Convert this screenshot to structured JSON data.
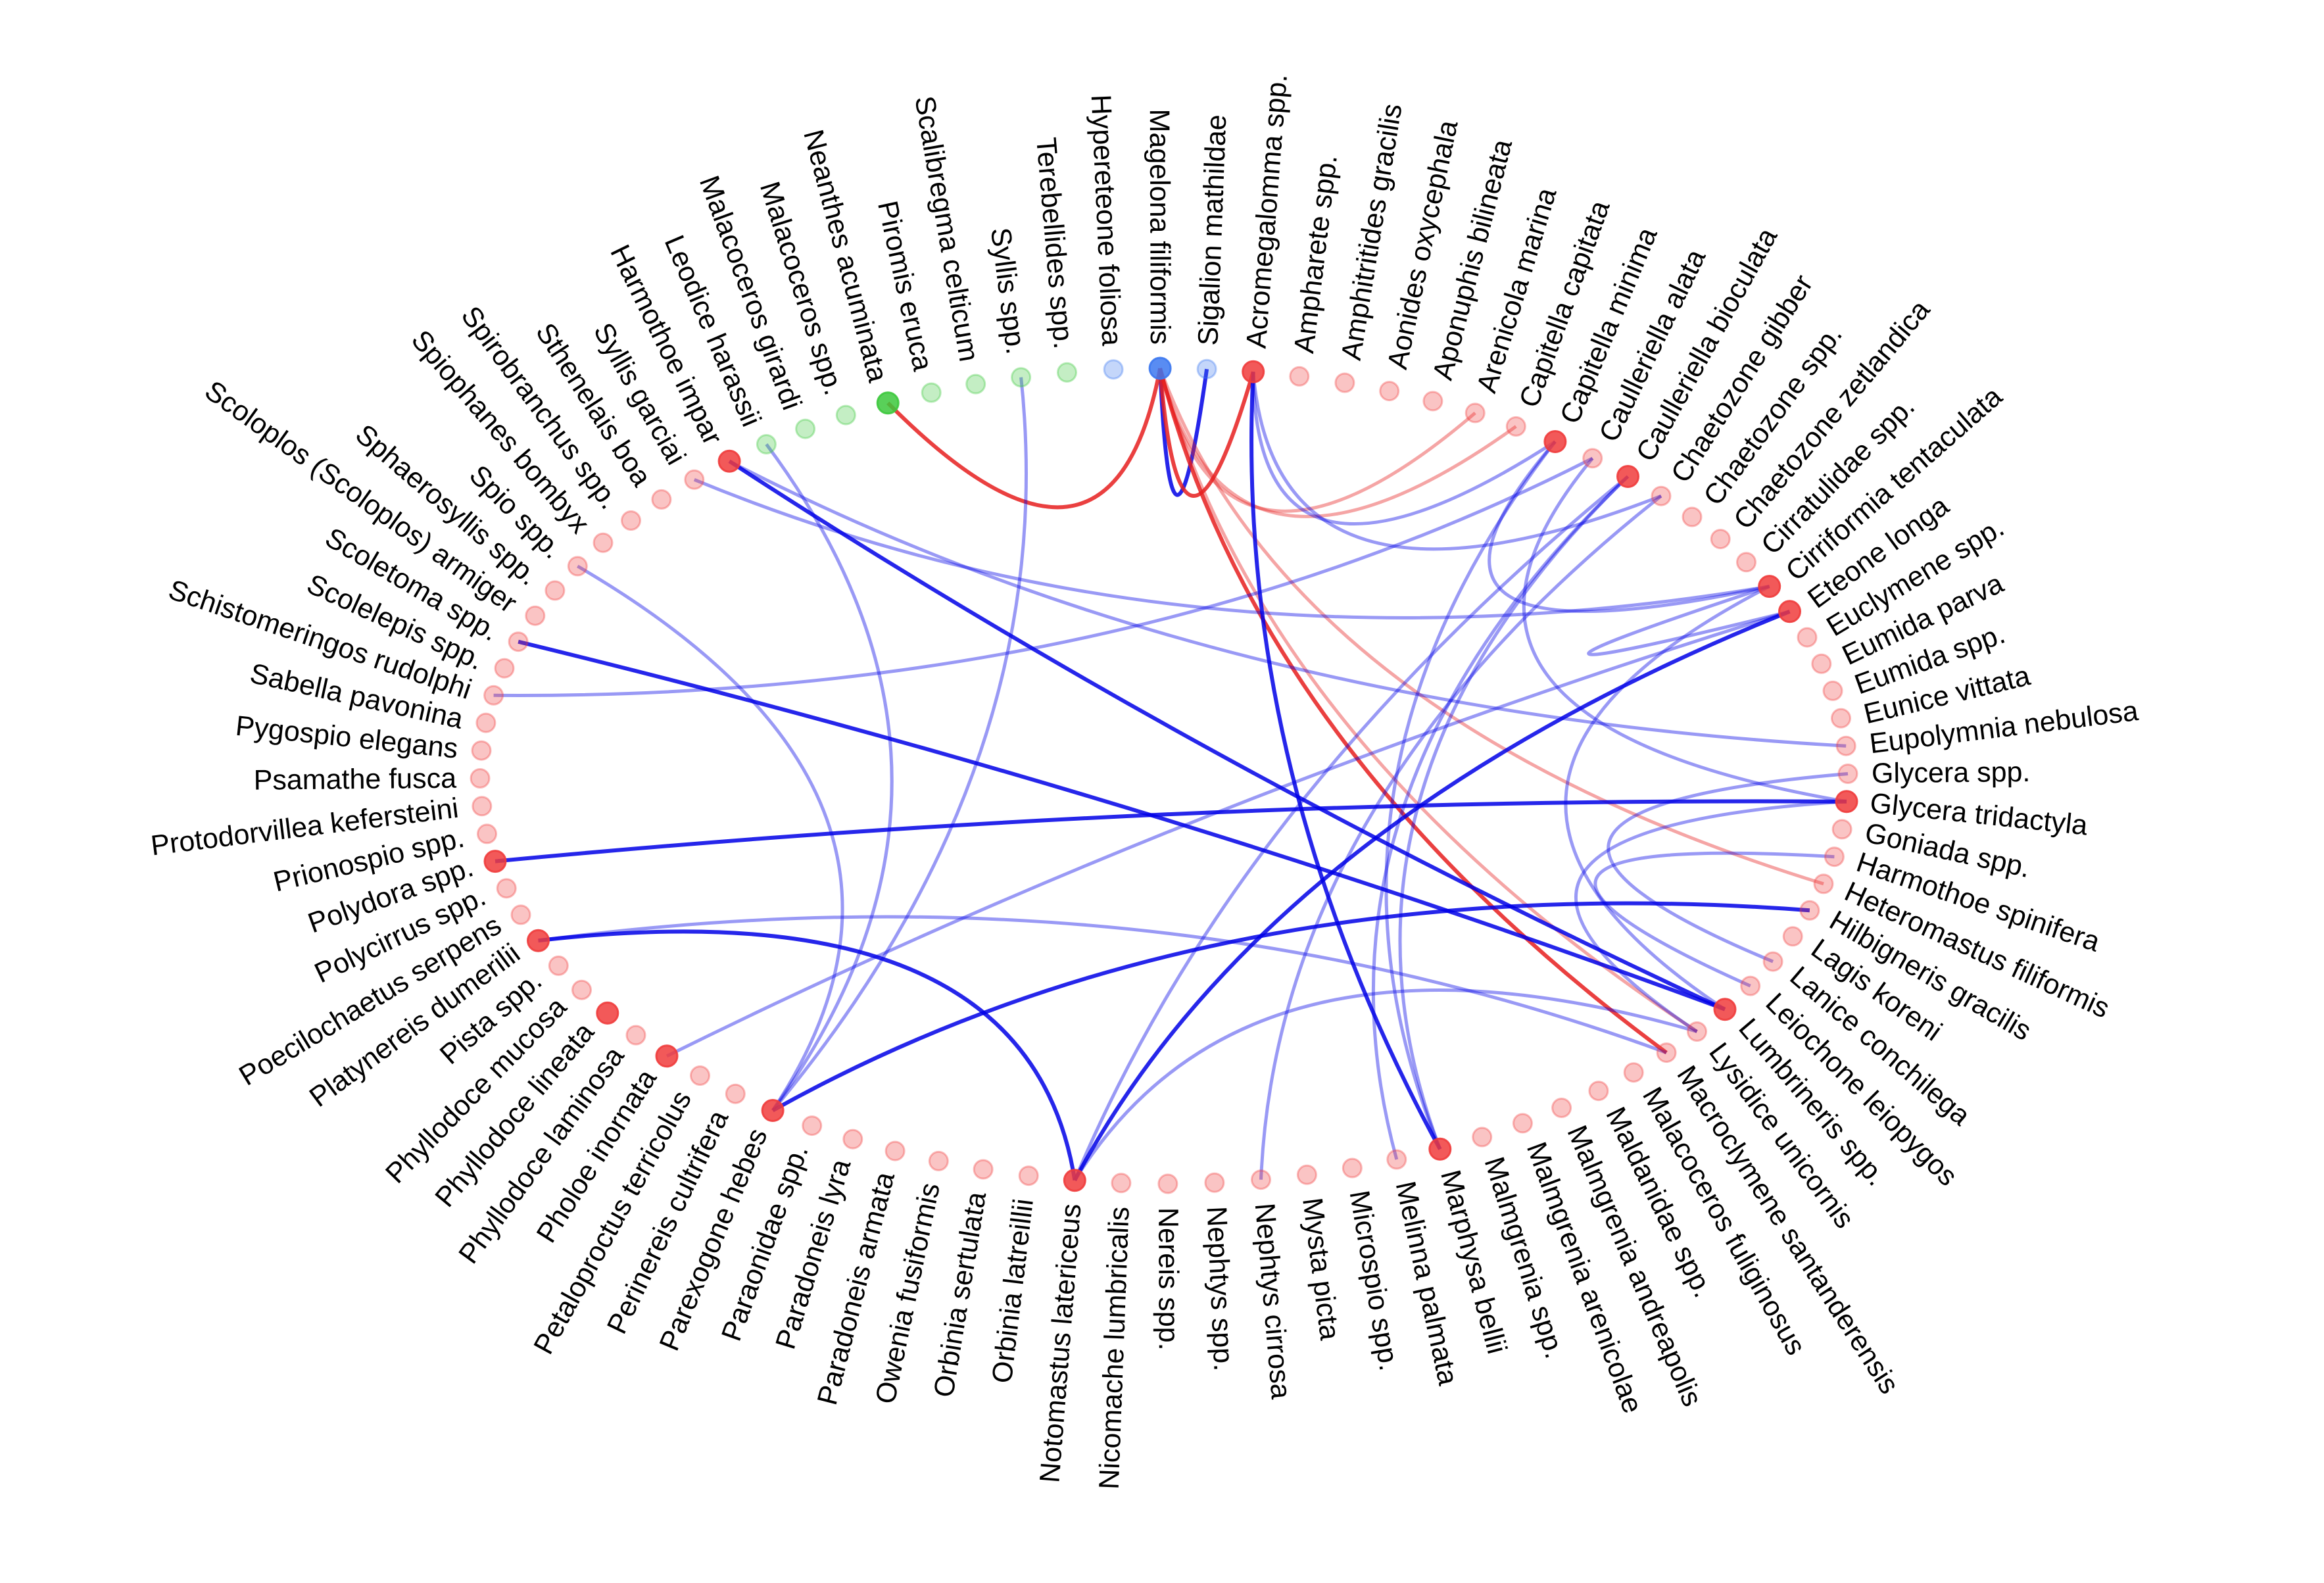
{
  "diagram": {
    "type": "circular-network",
    "colors": {
      "red": "#f03c3c",
      "green": "#3cc83c",
      "blue": "#3c78f0",
      "edge_positive": "#0000e6",
      "edge_negative": "#e61e1e"
    },
    "nodes": [
      {
        "label": "Acromegalomma spp.",
        "group": "red",
        "highlight": true
      },
      {
        "label": "Ampharete spp.",
        "group": "red",
        "highlight": false
      },
      {
        "label": "Amphitritides gracilis",
        "group": "red",
        "highlight": false
      },
      {
        "label": "Aonides oxycephala",
        "group": "red",
        "highlight": false
      },
      {
        "label": "Aponuphis bilineata",
        "group": "red",
        "highlight": false
      },
      {
        "label": "Arenicola marina",
        "group": "red",
        "highlight": false
      },
      {
        "label": "Capitella capitata",
        "group": "red",
        "highlight": false
      },
      {
        "label": "Capitella minima",
        "group": "red",
        "highlight": true
      },
      {
        "label": "Caulleriella alata",
        "group": "red",
        "highlight": false
      },
      {
        "label": "Caulleriella bioculata",
        "group": "red",
        "highlight": true
      },
      {
        "label": "Chaetozone gibber",
        "group": "red",
        "highlight": false
      },
      {
        "label": "Chaetozone spp.",
        "group": "red",
        "highlight": false
      },
      {
        "label": "Chaetozone zetlandica",
        "group": "red",
        "highlight": false
      },
      {
        "label": "Cirratulidae spp.",
        "group": "red",
        "highlight": false
      },
      {
        "label": "Cirriformia tentaculata",
        "group": "red",
        "highlight": true
      },
      {
        "label": "Eteone longa",
        "group": "red",
        "highlight": true
      },
      {
        "label": "Euclymene spp.",
        "group": "red",
        "highlight": false
      },
      {
        "label": "Eumida parva",
        "group": "red",
        "highlight": false
      },
      {
        "label": "Eumida spp.",
        "group": "red",
        "highlight": false
      },
      {
        "label": "Eunice vittata",
        "group": "red",
        "highlight": false
      },
      {
        "label": "Eupolymnia nebulosa",
        "group": "red",
        "highlight": false
      },
      {
        "label": "Glycera spp.",
        "group": "red",
        "highlight": false
      },
      {
        "label": "Glycera tridactyla",
        "group": "red",
        "highlight": true
      },
      {
        "label": "Goniada spp.",
        "group": "red",
        "highlight": false
      },
      {
        "label": "Harmothoe spinifera",
        "group": "red",
        "highlight": false
      },
      {
        "label": "Heteromastus filiformis",
        "group": "red",
        "highlight": false
      },
      {
        "label": "Hilbigneris gracilis",
        "group": "red",
        "highlight": false
      },
      {
        "label": "Lagis koreni",
        "group": "red",
        "highlight": false
      },
      {
        "label": "Lanice conchilega",
        "group": "red",
        "highlight": false
      },
      {
        "label": "Leiochone leiopygos",
        "group": "red",
        "highlight": false
      },
      {
        "label": "Lumbrineris spp.",
        "group": "red",
        "highlight": true
      },
      {
        "label": "Lysidice unicornis",
        "group": "red",
        "highlight": false
      },
      {
        "label": "Macroclymene santanderensis",
        "group": "red",
        "highlight": false
      },
      {
        "label": "Malacoceros fuliginosus",
        "group": "red",
        "highlight": false
      },
      {
        "label": "Maldanidae spp.",
        "group": "red",
        "highlight": false
      },
      {
        "label": "Malmgrenia andreapolis",
        "group": "red",
        "highlight": false
      },
      {
        "label": "Malmgrenia arenicolae",
        "group": "red",
        "highlight": false
      },
      {
        "label": "Malmgrenia spp.",
        "group": "red",
        "highlight": false
      },
      {
        "label": "Marphysa bellii",
        "group": "red",
        "highlight": true
      },
      {
        "label": "Melinna palmata",
        "group": "red",
        "highlight": false
      },
      {
        "label": "Microspio spp.",
        "group": "red",
        "highlight": false
      },
      {
        "label": "Mysta picta",
        "group": "red",
        "highlight": false
      },
      {
        "label": "Nephtys cirrosa",
        "group": "red",
        "highlight": false
      },
      {
        "label": "Nephtys spp.",
        "group": "red",
        "highlight": false
      },
      {
        "label": "Nereis spp.",
        "group": "red",
        "highlight": false
      },
      {
        "label": "Nicomache lumbricalis",
        "group": "red",
        "highlight": false
      },
      {
        "label": "Notomastus latericeus",
        "group": "red",
        "highlight": true
      },
      {
        "label": "Orbinia latreillii",
        "group": "red",
        "highlight": false
      },
      {
        "label": "Orbinia sertulata",
        "group": "red",
        "highlight": false
      },
      {
        "label": "Owenia fusiformis",
        "group": "red",
        "highlight": false
      },
      {
        "label": "Paradoneis armata",
        "group": "red",
        "highlight": false
      },
      {
        "label": "Paradoneis lyra",
        "group": "red",
        "highlight": false
      },
      {
        "label": "Paraonidae spp.",
        "group": "red",
        "highlight": false
      },
      {
        "label": "Parexogone hebes",
        "group": "red",
        "highlight": true
      },
      {
        "label": "Perinereis cultrifera",
        "group": "red",
        "highlight": false
      },
      {
        "label": "Petaloproctus terricolus",
        "group": "red",
        "highlight": false
      },
      {
        "label": "Pholoe inornata",
        "group": "red",
        "highlight": true
      },
      {
        "label": "Phyllodoce laminosa",
        "group": "red",
        "highlight": false
      },
      {
        "label": "Phyllodoce lineata",
        "group": "red",
        "highlight": true
      },
      {
        "label": "Phyllodoce mucosa",
        "group": "red",
        "highlight": false
      },
      {
        "label": "Pista spp.",
        "group": "red",
        "highlight": false
      },
      {
        "label": "Platynereis dumerilii",
        "group": "red",
        "highlight": true
      },
      {
        "label": "Poecilochaetus serpens",
        "group": "red",
        "highlight": false
      },
      {
        "label": "Polycirrus spp.",
        "group": "red",
        "highlight": false
      },
      {
        "label": "Polydora spp.",
        "group": "red",
        "highlight": true
      },
      {
        "label": "Prionospio spp.",
        "group": "red",
        "highlight": false
      },
      {
        "label": "Protodorvillea kefersteini",
        "group": "red",
        "highlight": false
      },
      {
        "label": "Psamathe fusca",
        "group": "red",
        "highlight": false
      },
      {
        "label": "Pygospio elegans",
        "group": "red",
        "highlight": false
      },
      {
        "label": "Sabella pavonina",
        "group": "red",
        "highlight": false
      },
      {
        "label": "Schistomeringos rudolphi",
        "group": "red",
        "highlight": false
      },
      {
        "label": "Scolelepis spp.",
        "group": "red",
        "highlight": false
      },
      {
        "label": "Scoletoma spp.",
        "group": "red",
        "highlight": false
      },
      {
        "label": "Scoloplos (Scoloplos) armiger",
        "group": "red",
        "highlight": false
      },
      {
        "label": "Sphaerosyllis spp.",
        "group": "red",
        "highlight": false
      },
      {
        "label": "Spio spp.",
        "group": "red",
        "highlight": false
      },
      {
        "label": "Spiophanes bombyx",
        "group": "red",
        "highlight": false
      },
      {
        "label": "Spirobranchus spp.",
        "group": "red",
        "highlight": false
      },
      {
        "label": "Sthenelais boa",
        "group": "red",
        "highlight": false
      },
      {
        "label": "Syllis garciai",
        "group": "red",
        "highlight": false
      },
      {
        "label": "Harmothoe impar",
        "group": "red",
        "highlight": true
      },
      {
        "label": "Leodice harassii",
        "group": "green",
        "highlight": false
      },
      {
        "label": "Malacoceros girardi",
        "group": "green",
        "highlight": false
      },
      {
        "label": "Malacoceros spp.",
        "group": "green",
        "highlight": false
      },
      {
        "label": "Neanthes acuminata",
        "group": "green",
        "highlight": true
      },
      {
        "label": "Piromis eruca",
        "group": "green",
        "highlight": false
      },
      {
        "label": "Scalibregma celticum",
        "group": "green",
        "highlight": false
      },
      {
        "label": "Syllis spp.",
        "group": "green",
        "highlight": false
      },
      {
        "label": "Terebellides spp.",
        "group": "green",
        "highlight": false
      },
      {
        "label": "Hypereteone foliosa",
        "group": "blue",
        "highlight": false
      },
      {
        "label": "Magelona filiformis",
        "group": "blue",
        "highlight": true
      },
      {
        "label": "Sigalion mathildae",
        "group": "blue",
        "highlight": false
      }
    ],
    "edges": [
      {
        "from": "Magelona filiformis",
        "to": "Sigalion mathildae",
        "sign": "positive",
        "strong": true
      },
      {
        "from": "Magelona filiformis",
        "to": "Acromegalomma spp.",
        "sign": "negative",
        "strong": true
      },
      {
        "from": "Magelona filiformis",
        "to": "Neanthes acuminata",
        "sign": "negative",
        "strong": true
      },
      {
        "from": "Magelona filiformis",
        "to": "Arenicola marina",
        "sign": "negative",
        "strong": false
      },
      {
        "from": "Magelona filiformis",
        "to": "Capitella capitata",
        "sign": "negative",
        "strong": false
      },
      {
        "from": "Magelona filiformis",
        "to": "Macroclymene santanderensis",
        "sign": "negative",
        "strong": true
      },
      {
        "from": "Magelona filiformis",
        "to": "Heteromastus filiformis",
        "sign": "negative",
        "strong": false
      },
      {
        "from": "Magelona filiformis",
        "to": "Lysidice unicornis",
        "sign": "negative",
        "strong": false
      },
      {
        "from": "Acromegalomma spp.",
        "to": "Marphysa bellii",
        "sign": "positive",
        "strong": true
      },
      {
        "from": "Acromegalomma spp.",
        "to": "Chaetozone gibber",
        "sign": "positive",
        "strong": false
      },
      {
        "from": "Acromegalomma spp.",
        "to": "Capitella minima",
        "sign": "positive",
        "strong": false
      },
      {
        "from": "Cirriformia tentaculata",
        "to": "Syllis garciai",
        "sign": "positive",
        "strong": false
      },
      {
        "from": "Cirriformia tentaculata",
        "to": "Lumbrineris spp.",
        "sign": "positive",
        "strong": false
      },
      {
        "from": "Cirriformia tentaculata",
        "to": "Capitella minima",
        "sign": "positive",
        "strong": false
      },
      {
        "from": "Eteone longa",
        "to": "Notomastus latericeus",
        "sign": "positive",
        "strong": true
      },
      {
        "from": "Eteone longa",
        "to": "Cirriformia tentaculata",
        "sign": "positive",
        "strong": false
      },
      {
        "from": "Eteone longa",
        "to": "Pholoe inornata",
        "sign": "positive",
        "strong": false
      },
      {
        "from": "Glycera tridactyla",
        "to": "Polydora spp.",
        "sign": "positive",
        "strong": true
      },
      {
        "from": "Glycera tridactyla",
        "to": "Caulleriella alata",
        "sign": "positive",
        "strong": false
      },
      {
        "from": "Glycera tridactyla",
        "to": "Lysidice unicornis",
        "sign": "positive",
        "strong": false
      },
      {
        "from": "Harmothoe impar",
        "to": "Lumbrineris spp.",
        "sign": "positive",
        "strong": true
      },
      {
        "from": "Harmothoe impar",
        "to": "Eupolymnia nebulosa",
        "sign": "positive",
        "strong": false
      },
      {
        "from": "Scoletoma spp.",
        "to": "Lumbrineris spp.",
        "sign": "positive",
        "strong": true
      },
      {
        "from": "Schistomeringos rudolphi",
        "to": "Caulleriella alata",
        "sign": "positive",
        "strong": false
      },
      {
        "from": "Parexogone hebes",
        "to": "Syllis spp.",
        "sign": "positive",
        "strong": false
      },
      {
        "from": "Parexogone hebes",
        "to": "Hilbigneris gracilis",
        "sign": "positive",
        "strong": true
      },
      {
        "from": "Parexogone hebes",
        "to": "Spio spp.",
        "sign": "positive",
        "strong": false
      },
      {
        "from": "Parexogone hebes",
        "to": "Leodice harassii",
        "sign": "positive",
        "strong": false
      },
      {
        "from": "Platynereis dumerilii",
        "to": "Notomastus latericeus",
        "sign": "positive",
        "strong": true
      },
      {
        "from": "Platynereis dumerilii",
        "to": "Macroclymene santanderensis",
        "sign": "positive",
        "strong": false
      },
      {
        "from": "Notomastus latericeus",
        "to": "Caulleriella bioculata",
        "sign": "positive",
        "strong": false
      },
      {
        "from": "Notomastus latericeus",
        "to": "Lysidice unicornis",
        "sign": "positive",
        "strong": false
      },
      {
        "from": "Marphysa bellii",
        "to": "Capitella minima",
        "sign": "positive",
        "strong": false
      },
      {
        "from": "Marphysa bellii",
        "to": "Caulleriella bioculata",
        "sign": "positive",
        "strong": false
      },
      {
        "from": "Melinna palmata",
        "to": "Caulleriella bioculata",
        "sign": "positive",
        "strong": false
      },
      {
        "from": "Nephtys cirrosa",
        "to": "Chaetozone gibber",
        "sign": "positive",
        "strong": false
      },
      {
        "from": "Lanice conchilega",
        "to": "Glycera spp.",
        "sign": "positive",
        "strong": false
      },
      {
        "from": "Leiochone leiopygos",
        "to": "Harmothoe spinifera",
        "sign": "positive",
        "strong": false
      }
    ]
  }
}
